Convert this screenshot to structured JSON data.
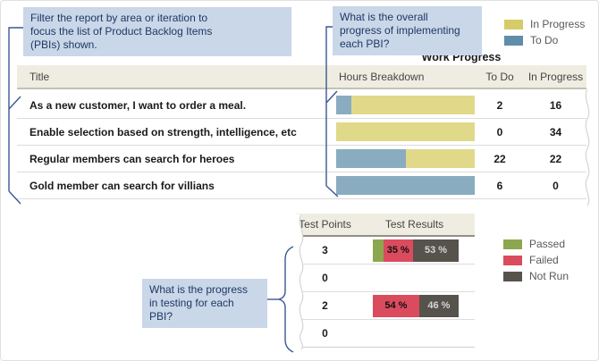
{
  "callouts": {
    "filter": "Filter the report by area or iteration to\nfocus the list of Product Backlog Items\n(PBIs) shown.",
    "overall": "What is the overall\nprogress of implementing\neach PBI?",
    "testing": "What is the progress\nin testing for each\nPBI?"
  },
  "work_progress": {
    "title": "Work Progress",
    "legend": [
      {
        "label": "In Progress",
        "color": "#D6CB69"
      },
      {
        "label": "To Do",
        "color": "#5F8DAA"
      }
    ],
    "columns": {
      "title": "Title",
      "hours": "Hours Breakdown",
      "todo": "To Do",
      "in_progress": "In Progress"
    },
    "bar_colors": {
      "todo": "#8AACC0",
      "in_progress": "#E0D98A"
    },
    "rows": [
      {
        "title": "As a new customer, I want to order a meal.",
        "todo": 2,
        "in_progress": 16
      },
      {
        "title": "Enable selection based on strength, intelligence, etc",
        "todo": 0,
        "in_progress": 34
      },
      {
        "title": "Regular members can search for heroes",
        "todo": 22,
        "in_progress": 22
      },
      {
        "title": "Gold member can search for villians",
        "todo": 6,
        "in_progress": 0
      }
    ]
  },
  "testing": {
    "columns": {
      "points": "Test Points",
      "results": "Test Results"
    },
    "legend": [
      {
        "label": "Passed",
        "color": "#8CA74F"
      },
      {
        "label": "Failed",
        "color": "#DB4B5E"
      },
      {
        "label": "Not Run",
        "color": "#56534D"
      }
    ],
    "bar_colors": {
      "passed": "#8CA74F",
      "failed": "#DB4B5E",
      "not_run": "#56534D"
    },
    "rows": [
      {
        "points": 3,
        "segments": [
          {
            "status": "passed",
            "pct": 12,
            "label": ""
          },
          {
            "status": "failed",
            "pct": 35,
            "label": "35 %"
          },
          {
            "status": "not_run",
            "pct": 53,
            "label": "53 %"
          }
        ]
      },
      {
        "points": 0,
        "segments": []
      },
      {
        "points": 2,
        "segments": [
          {
            "status": "failed",
            "pct": 54,
            "label": "54 %"
          },
          {
            "status": "not_run",
            "pct": 46,
            "label": "46 %"
          }
        ]
      },
      {
        "points": 0,
        "segments": []
      }
    ]
  },
  "chart_data": [
    {
      "type": "bar",
      "title": "Work Progress — Hours Breakdown (stacked, normalized to 100%)",
      "categories": [
        "As a new customer, I want to order a meal.",
        "Enable selection based on strength, intelligence, etc",
        "Regular members can search for heroes",
        "Gold member can search for villians"
      ],
      "series": [
        {
          "name": "To Do",
          "values": [
            2,
            0,
            22,
            6
          ]
        },
        {
          "name": "In Progress",
          "values": [
            16,
            34,
            22,
            0
          ]
        }
      ],
      "legend_position": "top-right"
    },
    {
      "type": "bar",
      "title": "Test Results (% stacked)",
      "categories": [
        "Test Points 3",
        "Test Points 0",
        "Test Points 2",
        "Test Points 0"
      ],
      "series": [
        {
          "name": "Passed",
          "values": [
            12,
            0,
            0,
            0
          ]
        },
        {
          "name": "Failed",
          "values": [
            35,
            0,
            54,
            0
          ]
        },
        {
          "name": "Not Run",
          "values": [
            53,
            0,
            46,
            0
          ]
        }
      ],
      "legend_position": "right"
    }
  ]
}
